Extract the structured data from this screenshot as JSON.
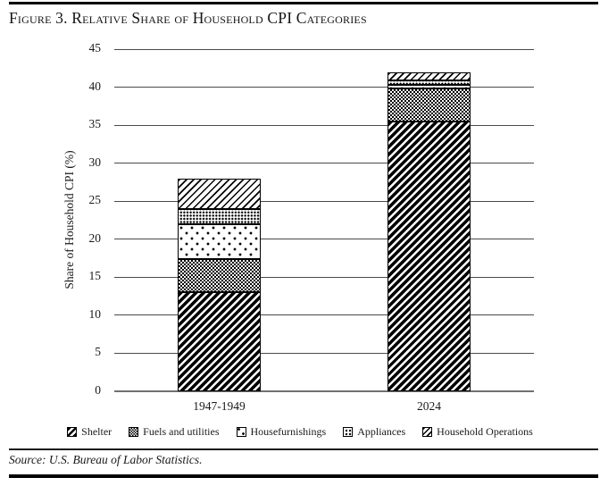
{
  "page": {
    "title": "Figure 3. Relative Share of Household CPI Categories",
    "source": "Source: U.S. Bureau of Labor Statistics."
  },
  "chart_data": {
    "type": "bar",
    "stacked": true,
    "title": "Figure 3. Relative Share of Household CPI Categories",
    "categories": [
      "1947-1949",
      "2024"
    ],
    "series": [
      {
        "name": "Shelter",
        "pattern": "shelter",
        "swatch_icon": "heavy-diagonal-hatch",
        "values": [
          13.0,
          35.5
        ]
      },
      {
        "name": "Fuels and utilities",
        "pattern": "fuels",
        "swatch_icon": "checkerboard",
        "values": [
          4.4,
          4.3
        ]
      },
      {
        "name": "Housefurnishings",
        "pattern": "housefurnishings",
        "swatch_icon": "sparse-dots",
        "values": [
          4.6,
          0.5
        ]
      },
      {
        "name": "Appliances",
        "pattern": "appliances",
        "swatch_icon": "dense-dots",
        "values": [
          2.0,
          0.6
        ]
      },
      {
        "name": "Household Operations",
        "pattern": "household-operations",
        "swatch_icon": "light-diagonal-hatch",
        "values": [
          4.0,
          1.1
        ]
      }
    ],
    "totals": [
      28.0,
      42.0
    ],
    "xlabel": "",
    "ylabel": "Share of Household CPI (%)",
    "ylim": [
      0,
      45
    ],
    "yticks": [
      0,
      5,
      10,
      15,
      20,
      25,
      30,
      35,
      40,
      45
    ],
    "grid": "horizontal",
    "legend_position": "bottom",
    "colors": {
      "foreground": "#000000",
      "background": "#ffffff",
      "gridline": "#4a4a4a"
    }
  }
}
